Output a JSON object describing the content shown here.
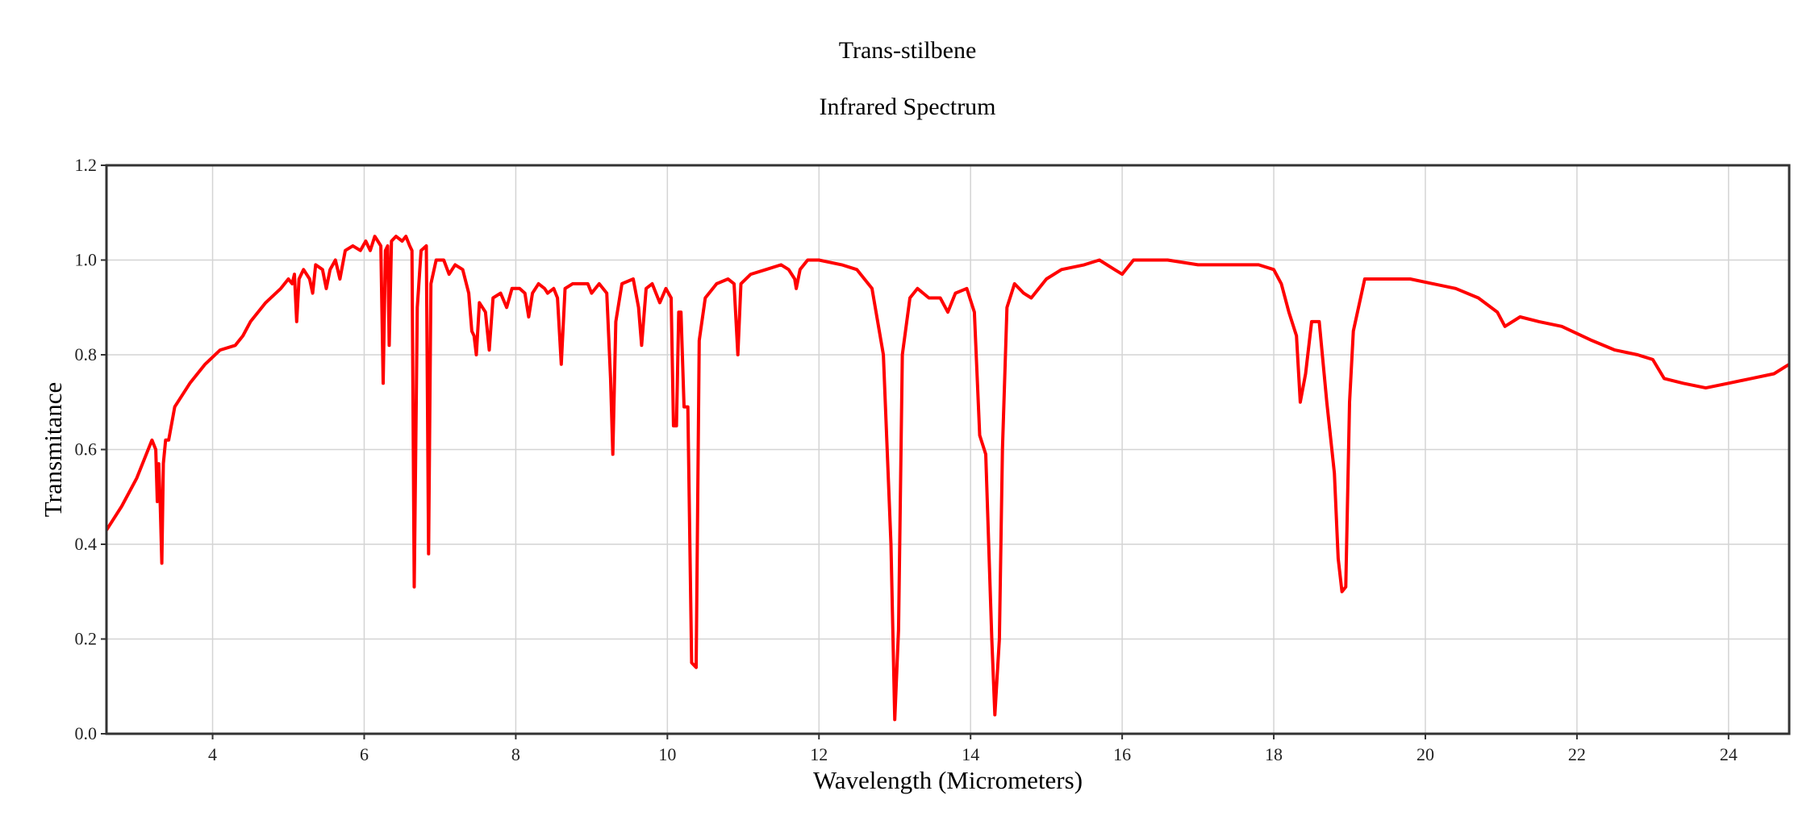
{
  "chart_data": {
    "type": "line",
    "title": "Trans-stilbene",
    "subtitle": "Infrared Spectrum",
    "xlabel": "Wavelength (Micrometers)",
    "ylabel": "Transmitance",
    "xlim": [
      2.6,
      24.8
    ],
    "ylim": [
      0.0,
      1.2
    ],
    "xticks": [
      4,
      6,
      8,
      10,
      12,
      14,
      16,
      18,
      20,
      22,
      24
    ],
    "yticks": [
      "0.0",
      "0.2",
      "0.4",
      "0.6",
      "0.8",
      "1.0",
      "1.2"
    ],
    "grid": true,
    "legend": "none",
    "series": [
      {
        "color": "#ff0000",
        "points": [
          [
            2.6,
            0.43
          ],
          [
            2.8,
            0.48
          ],
          [
            3.0,
            0.54
          ],
          [
            3.1,
            0.58
          ],
          [
            3.2,
            0.62
          ],
          [
            3.25,
            0.6
          ],
          [
            3.27,
            0.49
          ],
          [
            3.29,
            0.57
          ],
          [
            3.31,
            0.48
          ],
          [
            3.33,
            0.36
          ],
          [
            3.35,
            0.57
          ],
          [
            3.38,
            0.62
          ],
          [
            3.42,
            0.62
          ],
          [
            3.5,
            0.69
          ],
          [
            3.7,
            0.74
          ],
          [
            3.9,
            0.78
          ],
          [
            4.1,
            0.81
          ],
          [
            4.3,
            0.82
          ],
          [
            4.4,
            0.84
          ],
          [
            4.5,
            0.87
          ],
          [
            4.7,
            0.91
          ],
          [
            4.9,
            0.94
          ],
          [
            5.0,
            0.96
          ],
          [
            5.05,
            0.95
          ],
          [
            5.08,
            0.97
          ],
          [
            5.11,
            0.87
          ],
          [
            5.14,
            0.96
          ],
          [
            5.2,
            0.98
          ],
          [
            5.28,
            0.96
          ],
          [
            5.32,
            0.93
          ],
          [
            5.36,
            0.99
          ],
          [
            5.45,
            0.98
          ],
          [
            5.5,
            0.94
          ],
          [
            5.55,
            0.98
          ],
          [
            5.62,
            1.0
          ],
          [
            5.68,
            0.96
          ],
          [
            5.75,
            1.02
          ],
          [
            5.85,
            1.03
          ],
          [
            5.95,
            1.02
          ],
          [
            6.02,
            1.04
          ],
          [
            6.08,
            1.02
          ],
          [
            6.14,
            1.05
          ],
          [
            6.18,
            1.04
          ],
          [
            6.22,
            1.03
          ],
          [
            6.25,
            0.74
          ],
          [
            6.28,
            1.02
          ],
          [
            6.31,
            1.03
          ],
          [
            6.33,
            0.82
          ],
          [
            6.36,
            1.04
          ],
          [
            6.42,
            1.05
          ],
          [
            6.5,
            1.04
          ],
          [
            6.55,
            1.05
          ],
          [
            6.6,
            1.03
          ],
          [
            6.63,
            1.02
          ],
          [
            6.66,
            0.31
          ],
          [
            6.7,
            0.9
          ],
          [
            6.75,
            1.02
          ],
          [
            6.82,
            1.03
          ],
          [
            6.85,
            0.38
          ],
          [
            6.88,
            0.95
          ],
          [
            6.95,
            1.0
          ],
          [
            7.05,
            1.0
          ],
          [
            7.12,
            0.97
          ],
          [
            7.2,
            0.99
          ],
          [
            7.3,
            0.98
          ],
          [
            7.38,
            0.93
          ],
          [
            7.42,
            0.85
          ],
          [
            7.45,
            0.84
          ],
          [
            7.48,
            0.8
          ],
          [
            7.52,
            0.91
          ],
          [
            7.6,
            0.89
          ],
          [
            7.65,
            0.81
          ],
          [
            7.7,
            0.92
          ],
          [
            7.8,
            0.93
          ],
          [
            7.88,
            0.9
          ],
          [
            7.95,
            0.94
          ],
          [
            8.05,
            0.94
          ],
          [
            8.12,
            0.93
          ],
          [
            8.17,
            0.88
          ],
          [
            8.22,
            0.93
          ],
          [
            8.3,
            0.95
          ],
          [
            8.38,
            0.94
          ],
          [
            8.42,
            0.93
          ],
          [
            8.5,
            0.94
          ],
          [
            8.55,
            0.92
          ],
          [
            8.6,
            0.78
          ],
          [
            8.65,
            0.94
          ],
          [
            8.75,
            0.95
          ],
          [
            8.95,
            0.95
          ],
          [
            9.0,
            0.93
          ],
          [
            9.1,
            0.95
          ],
          [
            9.2,
            0.93
          ],
          [
            9.25,
            0.75
          ],
          [
            9.28,
            0.59
          ],
          [
            9.32,
            0.87
          ],
          [
            9.4,
            0.95
          ],
          [
            9.55,
            0.96
          ],
          [
            9.62,
            0.9
          ],
          [
            9.66,
            0.82
          ],
          [
            9.72,
            0.94
          ],
          [
            9.8,
            0.95
          ],
          [
            9.9,
            0.91
          ],
          [
            9.98,
            0.94
          ],
          [
            10.05,
            0.92
          ],
          [
            10.08,
            0.65
          ],
          [
            10.12,
            0.65
          ],
          [
            10.15,
            0.89
          ],
          [
            10.18,
            0.89
          ],
          [
            10.22,
            0.69
          ],
          [
            10.27,
            0.69
          ],
          [
            10.32,
            0.15
          ],
          [
            10.38,
            0.14
          ],
          [
            10.42,
            0.83
          ],
          [
            10.5,
            0.92
          ],
          [
            10.65,
            0.95
          ],
          [
            10.8,
            0.96
          ],
          [
            10.88,
            0.95
          ],
          [
            10.93,
            0.8
          ],
          [
            10.97,
            0.95
          ],
          [
            11.1,
            0.97
          ],
          [
            11.3,
            0.98
          ],
          [
            11.5,
            0.99
          ],
          [
            11.6,
            0.98
          ],
          [
            11.68,
            0.96
          ],
          [
            11.7,
            0.94
          ],
          [
            11.75,
            0.98
          ],
          [
            11.85,
            1.0
          ],
          [
            12.0,
            1.0
          ],
          [
            12.3,
            0.99
          ],
          [
            12.5,
            0.98
          ],
          [
            12.7,
            0.94
          ],
          [
            12.85,
            0.8
          ],
          [
            12.95,
            0.4
          ],
          [
            13.0,
            0.03
          ],
          [
            13.05,
            0.22
          ],
          [
            13.1,
            0.8
          ],
          [
            13.2,
            0.92
          ],
          [
            13.3,
            0.94
          ],
          [
            13.45,
            0.92
          ],
          [
            13.6,
            0.92
          ],
          [
            13.7,
            0.89
          ],
          [
            13.8,
            0.93
          ],
          [
            13.95,
            0.94
          ],
          [
            14.05,
            0.89
          ],
          [
            14.12,
            0.63
          ],
          [
            14.2,
            0.59
          ],
          [
            14.28,
            0.2
          ],
          [
            14.32,
            0.04
          ],
          [
            14.38,
            0.2
          ],
          [
            14.42,
            0.6
          ],
          [
            14.48,
            0.9
          ],
          [
            14.58,
            0.95
          ],
          [
            14.7,
            0.93
          ],
          [
            14.8,
            0.92
          ],
          [
            15.0,
            0.96
          ],
          [
            15.2,
            0.98
          ],
          [
            15.5,
            0.99
          ],
          [
            15.7,
            1.0
          ],
          [
            15.9,
            0.98
          ],
          [
            16.0,
            0.97
          ],
          [
            16.15,
            1.0
          ],
          [
            16.6,
            1.0
          ],
          [
            17.0,
            0.99
          ],
          [
            17.5,
            0.99
          ],
          [
            17.8,
            0.99
          ],
          [
            18.0,
            0.98
          ],
          [
            18.1,
            0.95
          ],
          [
            18.2,
            0.89
          ],
          [
            18.3,
            0.84
          ],
          [
            18.35,
            0.7
          ],
          [
            18.42,
            0.76
          ],
          [
            18.5,
            0.87
          ],
          [
            18.6,
            0.87
          ],
          [
            18.7,
            0.7
          ],
          [
            18.8,
            0.55
          ],
          [
            18.85,
            0.37
          ],
          [
            18.9,
            0.3
          ],
          [
            18.95,
            0.31
          ],
          [
            19.0,
            0.7
          ],
          [
            19.05,
            0.85
          ],
          [
            19.2,
            0.96
          ],
          [
            19.5,
            0.96
          ],
          [
            19.8,
            0.96
          ],
          [
            20.1,
            0.95
          ],
          [
            20.4,
            0.94
          ],
          [
            20.7,
            0.92
          ],
          [
            20.95,
            0.89
          ],
          [
            21.05,
            0.86
          ],
          [
            21.25,
            0.88
          ],
          [
            21.5,
            0.87
          ],
          [
            21.8,
            0.86
          ],
          [
            22.2,
            0.83
          ],
          [
            22.5,
            0.81
          ],
          [
            22.8,
            0.8
          ],
          [
            23.0,
            0.79
          ],
          [
            23.15,
            0.75
          ],
          [
            23.4,
            0.74
          ],
          [
            23.7,
            0.73
          ],
          [
            24.0,
            0.74
          ],
          [
            24.3,
            0.75
          ],
          [
            24.6,
            0.76
          ],
          [
            24.8,
            0.78
          ]
        ]
      }
    ]
  }
}
